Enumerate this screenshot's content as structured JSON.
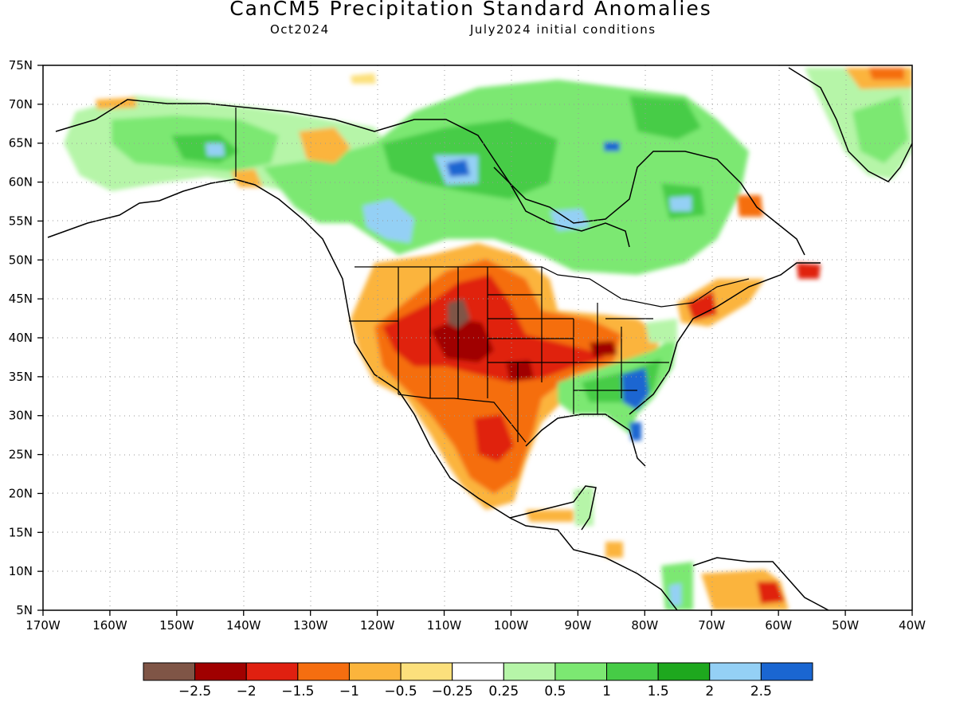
{
  "title": "CanCM5 Precipitation Standard Anomalies",
  "subtitle_left": "Oct2024",
  "subtitle_right": "July2024 initial conditions",
  "lat_ticks": [
    "75N",
    "70N",
    "65N",
    "60N",
    "55N",
    "50N",
    "45N",
    "40N",
    "35N",
    "30N",
    "25N",
    "20N",
    "15N",
    "10N",
    "5N"
  ],
  "lon_ticks": [
    "170W",
    "160W",
    "150W",
    "140W",
    "130W",
    "120W",
    "110W",
    "100W",
    "90W",
    "80W",
    "70W",
    "60W",
    "50W",
    "40W"
  ],
  "colorbar": {
    "colors": [
      "#7f5546",
      "#a00000",
      "#e02010",
      "#f56e10",
      "#fbb43c",
      "#fce07c",
      "#ffffff",
      "#b6f5a8",
      "#7ce872",
      "#46cc46",
      "#1ea81e",
      "#94d0f5",
      "#1a66d1"
    ],
    "labels": [
      "−2.5",
      "−2",
      "−1.5",
      "−1",
      "−0.5",
      "−0.25",
      "0.25",
      "0.5",
      "1",
      "1.5",
      "2",
      "2.5"
    ]
  },
  "map_data": {
    "projection": "cylindrical equidistant",
    "lon_range": [
      -170,
      -40
    ],
    "lat_range": [
      5,
      75
    ],
    "grid": "dotted",
    "anomaly_regions": [
      {
        "name": "Southwest/Plains dry core",
        "category": "-2 to -1.5",
        "lon": -105,
        "lat": 38
      },
      {
        "name": "Wyoming/Colorado extreme dry",
        "category": "< -2.5",
        "lon": -108,
        "lat": 42.5
      },
      {
        "name": "Oklahoma dry",
        "category": "-2",
        "lon": -98,
        "lat": 35.5
      },
      {
        "name": "Canada wet",
        "category": "0.5 to 1.5",
        "lon": -110,
        "lat": 58
      },
      {
        "name": "Hudson Bay wet",
        "category": "1 to 2",
        "lon": -95,
        "lat": 60
      },
      {
        "name": "Southeast US wet",
        "category": "2 to 2.5",
        "lon": -80,
        "lat": 33
      },
      {
        "name": "Alaska wet",
        "category": "0.5 to 1.5",
        "lon": -150,
        "lat": 64
      },
      {
        "name": "Greenland wet",
        "category": "0.5 to 1",
        "lon": -45,
        "lat": 68
      }
    ]
  }
}
